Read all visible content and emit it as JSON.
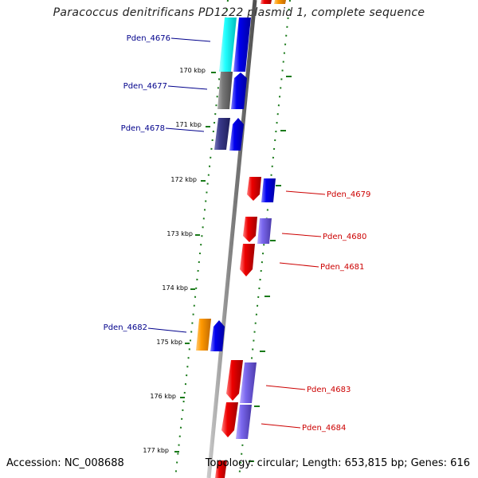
{
  "title": "Paracoccus denitrificans PD1222 plasmid 1, complete sequence",
  "accession": "Accession: NC_008688",
  "topology": "Topology: circular; Length: 653,815 bp; Genes: 616",
  "colors": {
    "backbone": "#808080",
    "tick": "#1a7a1a",
    "blue_label": "#00008b",
    "red_label": "#cc0000",
    "red_gene": "#ee0000",
    "blue_gene": "#0000ee",
    "slate_gene": "#7b68ee",
    "dark_slate_gene": "#3a3a8a",
    "cyan_gene": "#22ffff",
    "gray_gene": "#777777",
    "orange_gene": "#ff9900"
  },
  "kbp_labels": [
    "170 kbp",
    "171 kbp",
    "172 kbp",
    "173 kbp",
    "174 kbp",
    "175 kbp",
    "176 kbp",
    "177 kbp"
  ],
  "gene_labels": {
    "left": [
      "Pden_4676",
      "Pden_4677",
      "Pden_4678",
      "Pden_4682"
    ],
    "right": [
      "Pden_4679",
      "Pden_4680",
      "Pden_4681",
      "Pden_4683",
      "Pden_4684"
    ]
  }
}
